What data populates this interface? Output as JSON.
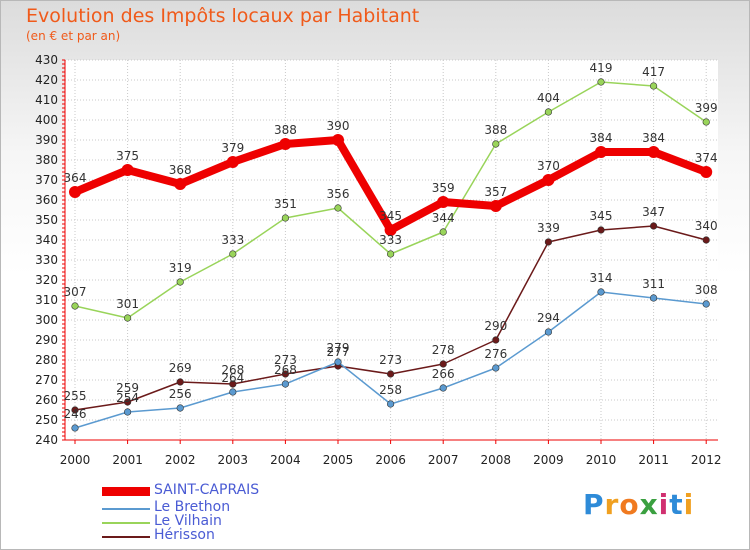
{
  "title": "Evolution des Impôts locaux par Habitant",
  "subtitle": "(en € et par an)",
  "logo": {
    "letters": [
      "P",
      "r",
      "o",
      "x",
      "i",
      "t",
      "i"
    ]
  },
  "chart_data": {
    "type": "line",
    "x": [
      "2000",
      "2001",
      "2002",
      "2003",
      "2004",
      "2005",
      "2006",
      "2007",
      "2008",
      "2009",
      "2010",
      "2011",
      "2012"
    ],
    "yticks": [
      240,
      250,
      260,
      270,
      280,
      290,
      300,
      310,
      320,
      330,
      340,
      350,
      360,
      370,
      380,
      390,
      400,
      410,
      420,
      430
    ],
    "ylim": [
      240,
      430
    ],
    "grid": true,
    "legend": "bottom-left",
    "series": [
      {
        "name": "SAINT-CAPRAIS",
        "color": "#ee0000",
        "values": [
          364,
          375,
          368,
          379,
          388,
          390,
          345,
          359,
          357,
          370,
          384,
          384,
          374
        ]
      },
      {
        "name": "Le Brethon",
        "color": "#5b9ad0",
        "values": [
          246,
          254,
          256,
          264,
          268,
          279,
          258,
          266,
          276,
          294,
          314,
          311,
          308
        ]
      },
      {
        "name": "Le Vilhain",
        "color": "#99d45a",
        "values": [
          307,
          301,
          319,
          333,
          351,
          356,
          333,
          344,
          388,
          404,
          419,
          417,
          399
        ]
      },
      {
        "name": "Hérisson",
        "color": "#6b1a1a",
        "values": [
          255,
          259,
          269,
          268,
          273,
          277,
          273,
          278,
          290,
          339,
          345,
          347,
          340
        ]
      }
    ]
  }
}
